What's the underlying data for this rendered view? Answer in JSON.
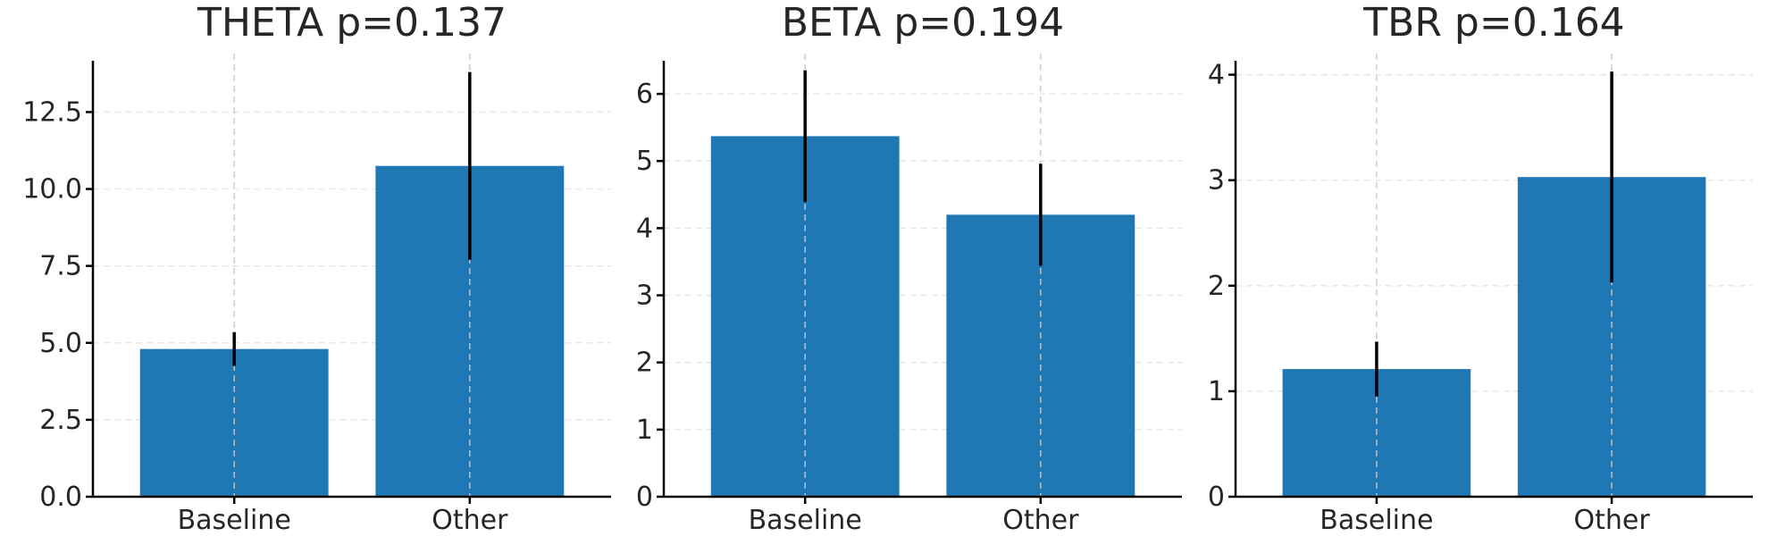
{
  "colors": {
    "bar": "#1f77b4",
    "error_bar": "#000000",
    "axis": "#000000",
    "text": "#262626",
    "grid": "#e6e6e6"
  },
  "chart_data": [
    {
      "type": "bar",
      "title": "THETA  p=0.137",
      "categories": [
        "Baseline",
        "Other"
      ],
      "values": [
        4.8,
        10.75
      ],
      "error": [
        0.55,
        3.05
      ],
      "ylim": [
        0,
        14.4
      ],
      "yticks": [
        0.0,
        2.5,
        5.0,
        7.5,
        10.0,
        12.5
      ],
      "ytick_labels": [
        "0.0",
        "2.5",
        "5.0",
        "7.5",
        "10.0",
        "12.5"
      ],
      "xlabel": "",
      "ylabel": "",
      "grid": true
    },
    {
      "type": "bar",
      "title": "BETA  p=0.194",
      "categories": [
        "Baseline",
        "Other"
      ],
      "values": [
        5.37,
        4.2
      ],
      "error": [
        0.98,
        0.76
      ],
      "ylim": [
        0,
        6.6
      ],
      "yticks": [
        0,
        1,
        2,
        3,
        4,
        5,
        6
      ],
      "ytick_labels": [
        "0",
        "1",
        "2",
        "3",
        "4",
        "5",
        "6"
      ],
      "xlabel": "",
      "ylabel": "",
      "grid": true
    },
    {
      "type": "bar",
      "title": "TBR  p=0.164",
      "categories": [
        "Baseline",
        "Other"
      ],
      "values": [
        1.21,
        3.03
      ],
      "error": [
        0.26,
        1.0
      ],
      "ylim": [
        0,
        4.2
      ],
      "yticks": [
        0,
        1,
        2,
        3,
        4
      ],
      "ytick_labels": [
        "0",
        "1",
        "2",
        "3",
        "4"
      ],
      "xlabel": "",
      "ylabel": "",
      "grid": true
    }
  ]
}
